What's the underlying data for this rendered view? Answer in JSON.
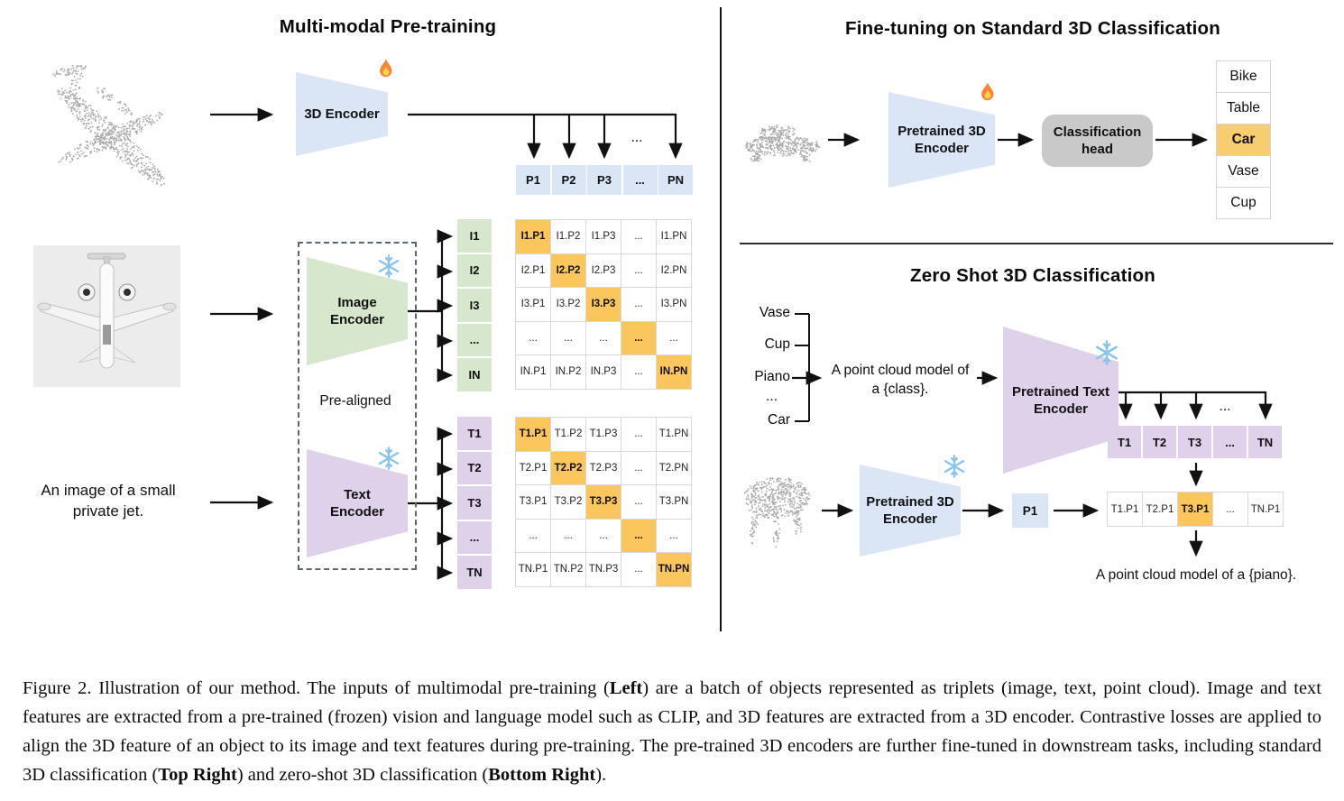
{
  "colors": {
    "blue": "#dae6f6",
    "green": "#d6e7cd",
    "purple": "#ded1e9",
    "highlight": "#fbc75d",
    "class_highlight": "#f8cd70",
    "head_gray": "#c9c9c9",
    "arrow": "#111111"
  },
  "left": {
    "title": "Multi-modal Pre-training",
    "encoder_3d": {
      "label": "3D Encoder",
      "icon": "flame"
    },
    "p_row": [
      "P1",
      "P2",
      "P3",
      "...",
      "PN"
    ],
    "branch_dots": "...",
    "image_encoder": {
      "label": "Image\nEncoder",
      "icon": "snowflake"
    },
    "text_encoder": {
      "label": "Text\nEncoder",
      "icon": "snowflake"
    },
    "prealigned": "Pre-aligned",
    "input_text": "An image of a small\nprivate jet.",
    "pointcloud_object": "airplane point cloud",
    "photo_object": "small private jet photo",
    "i_labels": [
      "I1",
      "I2",
      "I3",
      "...",
      "IN"
    ],
    "i_matrix": [
      [
        "I1.P1",
        "I1.P2",
        "I1.P3",
        "...",
        "I1.PN"
      ],
      [
        "I2.P1",
        "I2.P2",
        "I2.P3",
        "...",
        "I2.PN"
      ],
      [
        "I3.P1",
        "I3.P2",
        "I3.P3",
        "...",
        "I3.PN"
      ],
      [
        "...",
        "...",
        "...",
        "...",
        "..."
      ],
      [
        "IN.P1",
        "IN.P2",
        "IN.P3",
        "...",
        "IN.PN"
      ]
    ],
    "i_matrix_highlight": "diagonal",
    "t_labels": [
      "T1",
      "T2",
      "T3",
      "...",
      "TN"
    ],
    "t_matrix": [
      [
        "T1.P1",
        "T1.P2",
        "T1.P3",
        "...",
        "T1.PN"
      ],
      [
        "T2.P1",
        "T2.P2",
        "T2.P3",
        "...",
        "T2.PN"
      ],
      [
        "T3.P1",
        "T3.P2",
        "T3.P3",
        "...",
        "T3.PN"
      ],
      [
        "...",
        "...",
        "...",
        "...",
        "..."
      ],
      [
        "TN.P1",
        "TN.P2",
        "TN.P3",
        "...",
        "TN.PN"
      ]
    ],
    "t_matrix_highlight": "diagonal"
  },
  "finetune": {
    "title": "Fine-tuning on Standard 3D Classification",
    "pointcloud_object": "car point cloud",
    "encoder": {
      "label": "Pretrained 3D\nEncoder",
      "icon": "flame"
    },
    "head": {
      "label": "Classification\nhead"
    },
    "classes": [
      "Bike",
      "Table",
      "Car",
      "Vase",
      "Cup"
    ],
    "highlighted_class": "Car"
  },
  "zeroshot": {
    "title": "Zero Shot 3D Classification",
    "class_list": [
      "Vase",
      "Cup",
      "Piano",
      "...",
      "Car"
    ],
    "prompt": "A point cloud model of\na {class}.",
    "text_encoder": {
      "label": "Pretrained Text\nEncoder",
      "icon": "snowflake"
    },
    "t_row": [
      "T1",
      "T2",
      "T3",
      "...",
      "TN"
    ],
    "branch_dots": "...",
    "pointcloud_object": "piano point cloud",
    "encoder_3d": {
      "label": "Pretrained 3D\nEncoder",
      "icon": "snowflake"
    },
    "p_cell": "P1",
    "result_row": [
      "T1.P1",
      "T2.P1",
      "T3.P1",
      "...",
      "TN.P1"
    ],
    "result_highlight_index": 2,
    "output_text": "A point cloud model of a {piano}."
  },
  "caption": {
    "segments": [
      {
        "text": "Figure 2. Illustration of our method. The inputs of multimodal pre-training (",
        "bold": false
      },
      {
        "text": "Left",
        "bold": true
      },
      {
        "text": ") are a batch of objects represented as triplets (image, text, point cloud). Image and text features are extracted from a pre-trained (frozen) vision and language model such as CLIP, and 3D features are extracted from a 3D encoder. Contrastive losses are applied to align the 3D feature of an object to its image and text features during pre-training. The pre-trained 3D encoders are further fine-tuned in downstream tasks, including standard 3D classification (",
        "bold": false
      },
      {
        "text": "Top Right",
        "bold": true
      },
      {
        "text": ") and zero-shot 3D classification (",
        "bold": false
      },
      {
        "text": "Bottom Right",
        "bold": true
      },
      {
        "text": ").",
        "bold": false
      }
    ]
  }
}
